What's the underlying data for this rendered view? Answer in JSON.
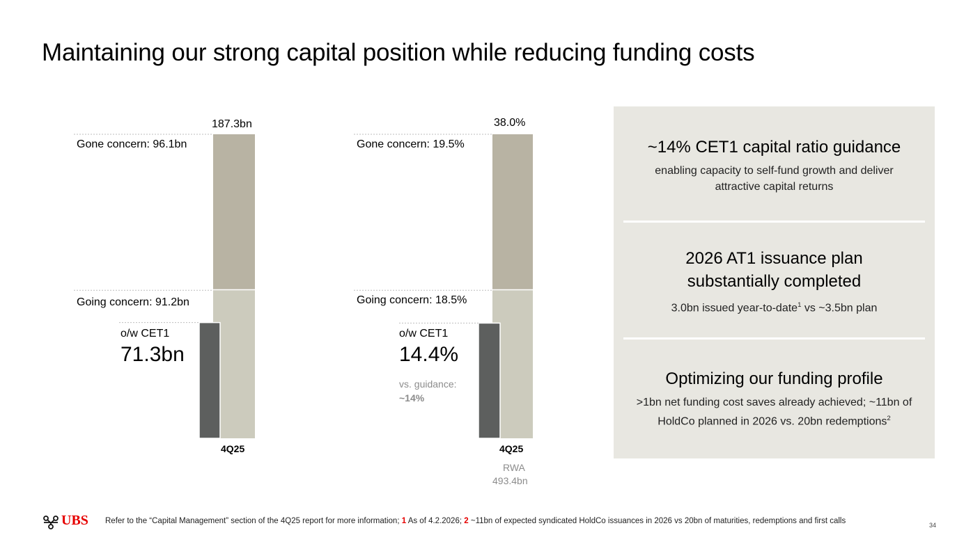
{
  "title": "Maintaining our strong capital position while reducing funding costs",
  "colors": {
    "gone": "#b8b3a3",
    "going": "#cccbbd",
    "cet1": "#5d5f5e",
    "panel": "#e8e7e1",
    "brand_red": "#e60000",
    "dotted": "#bdbdbd"
  },
  "chart_data": [
    {
      "type": "bar",
      "stacking": "stacked",
      "title": "",
      "categories": [
        "4Q25"
      ],
      "total_label": "187.3bn",
      "series": [
        {
          "name": "Going concern",
          "label": "Going concern: 91.2bn",
          "values": [
            91.2
          ]
        },
        {
          "name": "Gone concern",
          "label": "Gone concern: 96.1bn",
          "values": [
            96.1
          ]
        }
      ],
      "overlay": {
        "name": "o/w CET1",
        "label": "o/w CET1",
        "value": 71.3,
        "value_label": "71.3bn"
      },
      "unit": "bn"
    },
    {
      "type": "bar",
      "stacking": "stacked",
      "title": "",
      "categories": [
        "4Q25"
      ],
      "total_label": "38.0%",
      "series": [
        {
          "name": "Going concern",
          "label": "Going concern: 18.5%",
          "values": [
            18.5
          ]
        },
        {
          "name": "Gone concern",
          "label": "Gone concern: 19.5%",
          "values": [
            19.5
          ]
        }
      ],
      "overlay": {
        "name": "o/w CET1",
        "label": "o/w CET1",
        "value": 14.4,
        "value_label": "14.4%"
      },
      "guidance": {
        "label": "vs. guidance:",
        "value_label": "~14%"
      },
      "rwa": {
        "label": "RWA",
        "value": "493.4bn"
      },
      "unit": "%"
    }
  ],
  "panel": {
    "sections": [
      {
        "heading": "~14% CET1 capital ratio guidance",
        "body": "enabling capacity to self-fund growth and deliver attractive capital returns"
      },
      {
        "heading": "2026 AT1 issuance plan substantially completed",
        "body_pre": "3.0bn issued year-to-date",
        "body_sup": "1",
        "body_post": " vs ~3.5bn plan"
      },
      {
        "heading": "Optimizing our funding profile",
        "body_pre": ">1bn net funding cost saves already achieved; ~11bn of HoldCo planned in 2026 vs. 20bn redemptions",
        "body_sup": "2"
      }
    ]
  },
  "footer": {
    "logo": "UBS",
    "note_intro": "Refer to the “Capital Management” section of the 4Q25 report for more information;",
    "fn1_num": "1",
    "fn1_text": "As of 4.2.2026;",
    "fn2_num": "2",
    "fn2_text": "~11bn of expected syndicated HoldCo issuances in 2026 vs 20bn of maturities, redemptions and first calls",
    "page_number": "34"
  }
}
